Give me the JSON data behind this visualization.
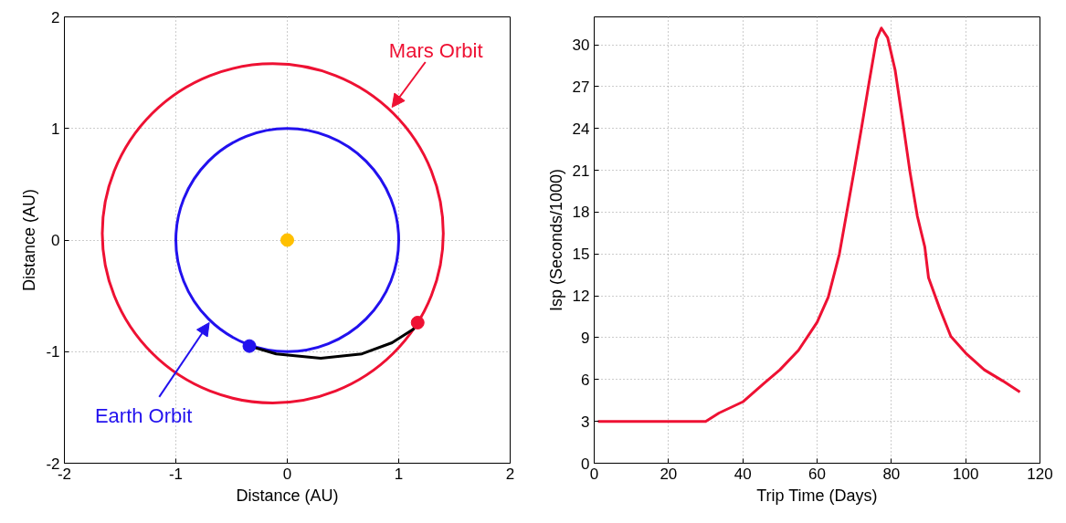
{
  "chart_data": [
    {
      "type": "line",
      "xlabel": "Distance (AU)",
      "ylabel": "Distance (AU)",
      "xlim": [
        -2,
        2
      ],
      "ylim": [
        -2,
        2
      ],
      "xticks": [
        -2,
        -1,
        0,
        1,
        2
      ],
      "yticks": [
        -2,
        -1,
        0,
        1,
        2
      ],
      "grid": true,
      "line_style": "solid",
      "series": [
        {
          "color": "#000000",
          "x": [
            -0.34,
            -0.1,
            0.3,
            0.67,
            0.94,
            1.13,
            1.17
          ],
          "values": [
            -0.95,
            -1.02,
            -1.06,
            -1.02,
            -0.92,
            -0.8,
            -0.74
          ]
        },
        {
          "type": "scatter",
          "marker": "circle",
          "color": "#ffc000",
          "x": [
            0
          ],
          "values": [
            0
          ]
        },
        {
          "type": "scatter",
          "marker": "circle",
          "color": "#2211ee",
          "x": [
            -0.34
          ],
          "values": [
            -0.95
          ]
        },
        {
          "type": "scatter",
          "marker": "circle",
          "color": "#ee1133",
          "x": [
            1.17
          ],
          "values": [
            -0.74
          ]
        }
      ],
      "annotations": [
        "Mars Orbit",
        "Earth Orbit"
      ]
    },
    {
      "type": "line",
      "xlabel": "Trip Time (Days)",
      "ylabel": "Isp (Seconds/1000)",
      "xlim": [
        0,
        120
      ],
      "ylim": [
        0,
        32
      ],
      "xticks": [
        0,
        20,
        40,
        60,
        80,
        100,
        120
      ],
      "yticks": [
        0,
        3,
        6,
        9,
        12,
        15,
        18,
        21,
        24,
        27,
        30
      ],
      "grid": true,
      "line_style": "solid",
      "series": [
        {
          "color": "#ee1133",
          "x": [
            1,
            30,
            33.6,
            40,
            45.6,
            50,
            55,
            60,
            63,
            66,
            68,
            70,
            72,
            74,
            76,
            77.3,
            79,
            81,
            83,
            85,
            87,
            89,
            90,
            93,
            96,
            100,
            105,
            110,
            114.6
          ],
          "values": [
            3,
            3,
            3.6,
            4.4,
            5.7,
            6.7,
            8.1,
            10.1,
            11.9,
            15.0,
            18.0,
            21.0,
            24.1,
            27.3,
            30.4,
            31.2,
            30.5,
            28.2,
            24.6,
            20.9,
            17.7,
            15.5,
            13.3,
            11.1,
            9.1,
            7.9,
            6.7,
            5.9,
            5.1
          ]
        }
      ]
    }
  ]
}
